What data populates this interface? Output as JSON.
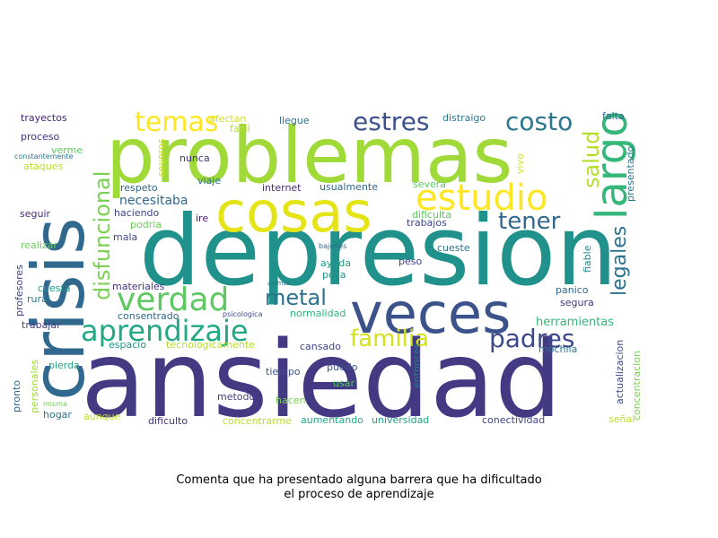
{
  "chart_data": {
    "type": "wordcloud",
    "caption": {
      "line1": "Comenta que ha presentado alguna barrera que ha dificultado",
      "line2": "el proceso de aprendizaje"
    },
    "words": [
      {
        "text": "ansiedad",
        "color": "#443983"
      },
      {
        "text": "depresion",
        "color": "#21918c"
      },
      {
        "text": "problemas",
        "color": "#a0da39"
      },
      {
        "text": "crisis",
        "color": "#31688e"
      },
      {
        "text": "cosas",
        "color": "#e5e419"
      },
      {
        "text": "veces",
        "color": "#3b528b"
      },
      {
        "text": "estudio",
        "color": "#fde725"
      },
      {
        "text": "aprendizaje",
        "color": "#22a884"
      },
      {
        "text": "verdad",
        "color": "#5ec962"
      },
      {
        "text": "largo",
        "color": "#35b779"
      },
      {
        "text": "temas",
        "color": "#fde725"
      },
      {
        "text": "estres",
        "color": "#3b528b"
      },
      {
        "text": "costo",
        "color": "#2a788e"
      },
      {
        "text": "disfuncional",
        "color": "#7ad151"
      },
      {
        "text": "tener",
        "color": "#31688e"
      },
      {
        "text": "familia",
        "color": "#d2e21b"
      },
      {
        "text": "padres",
        "color": "#3e4989"
      },
      {
        "text": "metal",
        "color": "#2c728e"
      },
      {
        "text": "salud",
        "color": "#b5de2b"
      },
      {
        "text": "legales",
        "color": "#2c728e"
      },
      {
        "text": "necesitaba",
        "color": "#31688e"
      },
      {
        "text": "herramientas",
        "color": "#35b779"
      },
      {
        "text": "trayectos",
        "color": "#482475"
      },
      {
        "text": "proceso",
        "color": "#46327e"
      },
      {
        "text": "verme",
        "color": "#5ec962"
      },
      {
        "text": "constantemente",
        "color": "#2a788e"
      },
      {
        "text": "ataques",
        "color": "#bddf26"
      },
      {
        "text": "seguir",
        "color": "#472d7b"
      },
      {
        "text": "realizar",
        "color": "#6ccd5a"
      },
      {
        "text": "profesores",
        "color": "#414487"
      },
      {
        "text": "rural",
        "color": "#2a788e"
      },
      {
        "text": "cuesta",
        "color": "#1e9b8a"
      },
      {
        "text": "trabajar",
        "color": "#433e85"
      },
      {
        "text": "consentrado",
        "color": "#31688e"
      },
      {
        "text": "espacio",
        "color": "#21918c"
      },
      {
        "text": "pierda",
        "color": "#20a486"
      },
      {
        "text": "pronto",
        "color": "#31688e"
      },
      {
        "text": "personales",
        "color": "#a0da39"
      },
      {
        "text": "misma",
        "color": "#73d056"
      },
      {
        "text": "hogar",
        "color": "#2c728e"
      },
      {
        "text": "aunque",
        "color": "#c2df23"
      },
      {
        "text": "dificulto",
        "color": "#46327e"
      },
      {
        "text": "concentrarme",
        "color": "#b5de2b"
      },
      {
        "text": "aumentando",
        "color": "#22a884"
      },
      {
        "text": "universidad",
        "color": "#1fa187"
      },
      {
        "text": "conectividad",
        "color": "#414487"
      },
      {
        "text": "señal",
        "color": "#bddf26"
      },
      {
        "text": "concentracion",
        "color": "#7ad151"
      },
      {
        "text": "actualizacion",
        "color": "#3e4989"
      },
      {
        "text": "mochila",
        "color": "#2a788e"
      },
      {
        "text": "segura",
        "color": "#46337f"
      },
      {
        "text": "panico",
        "color": "#31688e"
      },
      {
        "text": "fiable",
        "color": "#24878e"
      },
      {
        "text": "presentado",
        "color": "#2a788e"
      },
      {
        "text": "falta",
        "color": "#31688e"
      },
      {
        "text": "vivo",
        "color": "#d2e21b"
      },
      {
        "text": "distraigo",
        "color": "#2a788e"
      },
      {
        "text": "severa",
        "color": "#5ec962"
      },
      {
        "text": "dificulta",
        "color": "#5ec962"
      },
      {
        "text": "trabajos",
        "color": "#3e4989"
      },
      {
        "text": "cueste",
        "color": "#2c728e"
      },
      {
        "text": "peso",
        "color": "#404688"
      },
      {
        "text": "bajones",
        "color": "#31688e"
      },
      {
        "text": "animos",
        "color": "#2a788e"
      },
      {
        "text": "ayuda",
        "color": "#1f9e89"
      },
      {
        "text": "poca",
        "color": "#21918c"
      },
      {
        "text": "normalidad",
        "color": "#2fb47c"
      },
      {
        "text": "psicologica",
        "color": "#3e4a89"
      },
      {
        "text": "cansado",
        "color": "#404688"
      },
      {
        "text": "puedo",
        "color": "#3b528b"
      },
      {
        "text": "tiempo",
        "color": "#3b528b"
      },
      {
        "text": "usar",
        "color": "#52c569"
      },
      {
        "text": "hacen",
        "color": "#7ad151"
      },
      {
        "text": "entonces",
        "color": "#2a788e"
      },
      {
        "text": "metodo",
        "color": "#433e85"
      },
      {
        "text": "tecnologicamente",
        "color": "#b5de2b"
      },
      {
        "text": "materiales",
        "color": "#46337f"
      },
      {
        "text": "respeto",
        "color": "#31688e"
      },
      {
        "text": "haciendo",
        "color": "#414487"
      },
      {
        "text": "podria",
        "color": "#6ccd5a"
      },
      {
        "text": "mala",
        "color": "#3e4989"
      },
      {
        "text": "ire",
        "color": "#482173"
      },
      {
        "text": "viaje",
        "color": "#2c728e"
      },
      {
        "text": "nunca",
        "color": "#46327e"
      },
      {
        "text": "severos",
        "color": "#d2e21b"
      },
      {
        "text": "facil",
        "color": "#b5de2b"
      },
      {
        "text": "afectan",
        "color": "#d2e21b"
      },
      {
        "text": "llegue",
        "color": "#2c728e"
      },
      {
        "text": "internet",
        "color": "#472d7b"
      },
      {
        "text": "usualmente",
        "color": "#31688e"
      }
    ]
  }
}
